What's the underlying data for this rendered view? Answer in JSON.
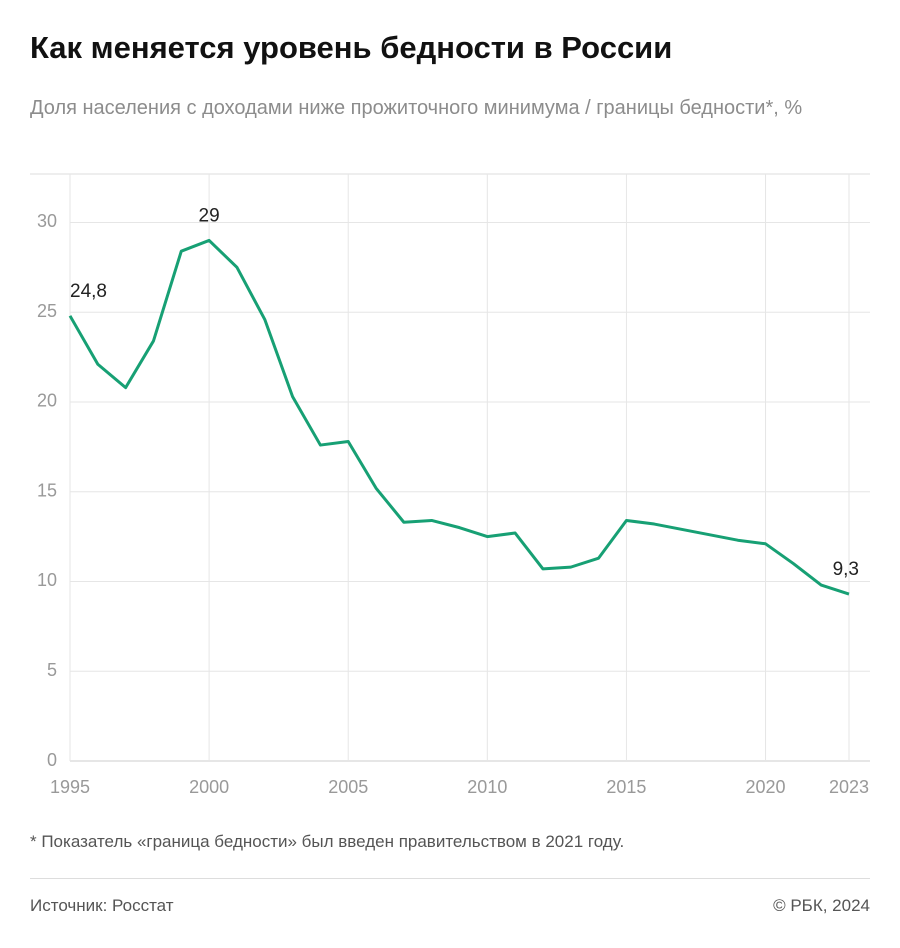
{
  "chart_data": {
    "type": "line",
    "title": "Как меняется уровень бедности в России",
    "subtitle": "Доля населения с доходами ниже прожиточного минимума / границы бедности*, %",
    "footnote": "* Показатель «граница бедности» был введен правительством в 2021 году.",
    "source": "Источник: Росстат",
    "credit": "© РБК, 2024",
    "x": [
      1995,
      1996,
      1997,
      1998,
      1999,
      2000,
      2001,
      2002,
      2003,
      2004,
      2005,
      2006,
      2007,
      2008,
      2009,
      2010,
      2011,
      2012,
      2013,
      2014,
      2015,
      2016,
      2017,
      2018,
      2019,
      2020,
      2021,
      2022,
      2023
    ],
    "values": [
      24.8,
      22.1,
      20.8,
      23.4,
      28.4,
      29,
      27.5,
      24.6,
      20.3,
      17.6,
      17.8,
      15.2,
      13.3,
      13.4,
      13.0,
      12.5,
      12.7,
      10.7,
      10.8,
      11.3,
      13.4,
      13.2,
      12.9,
      12.6,
      12.3,
      12.1,
      11.0,
      9.8,
      9.3
    ],
    "value_labels": [
      "24,8",
      null,
      null,
      null,
      null,
      "29",
      null,
      null,
      null,
      null,
      null,
      null,
      null,
      null,
      null,
      null,
      null,
      null,
      null,
      null,
      null,
      null,
      null,
      null,
      null,
      null,
      null,
      null,
      "9,3"
    ],
    "color": "#17a074",
    "xlim": [
      1995,
      2023
    ],
    "xticks": [
      1995,
      2000,
      2005,
      2010,
      2015,
      2020,
      2023
    ],
    "ylim": [
      0,
      32.7
    ],
    "yticks": [
      0,
      5,
      10,
      15,
      20,
      25,
      30
    ],
    "grid": true
  }
}
